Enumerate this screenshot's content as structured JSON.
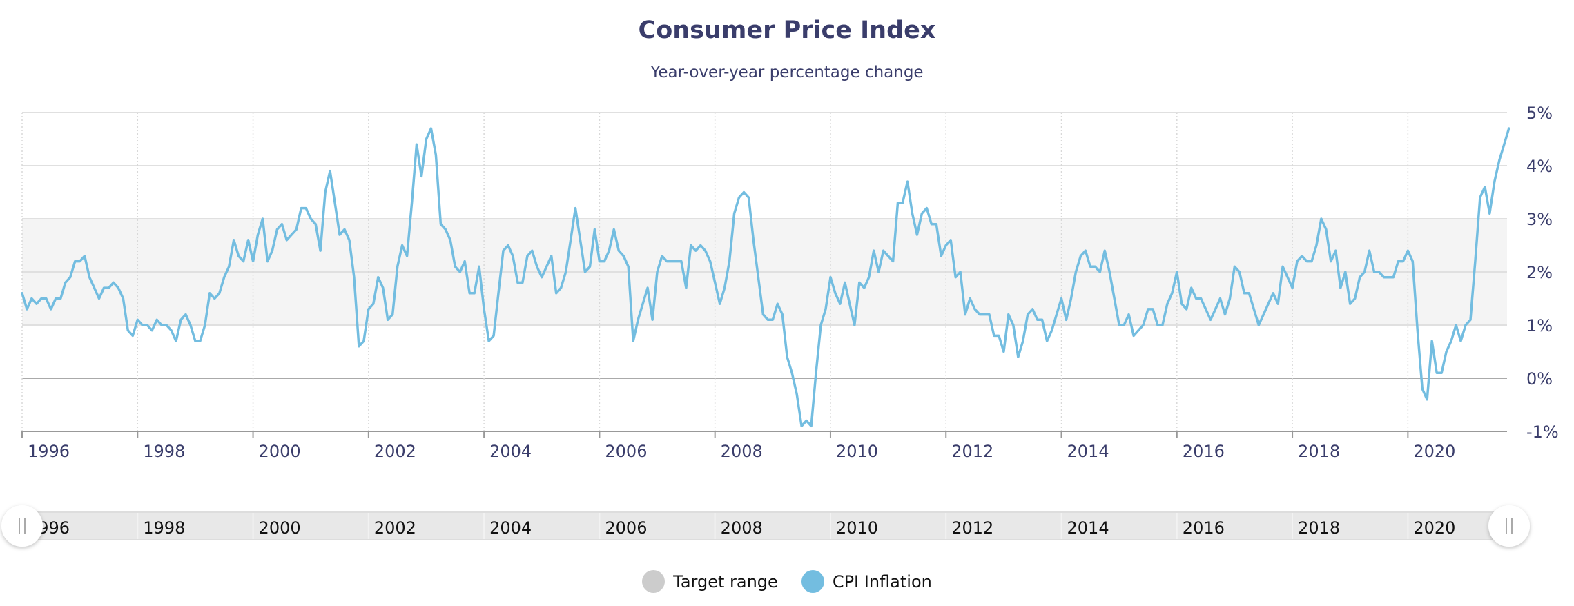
{
  "header": {
    "title": "Consumer Price Index",
    "subtitle": "Year-over-year percentage change"
  },
  "legend": [
    {
      "label": "Target range",
      "color": "#cccccc"
    },
    {
      "label": "CPI Inflation",
      "color": "#73bde0"
    }
  ],
  "colors": {
    "line": "#73bde0",
    "target_band": "#f4f4f4",
    "grid": "#e0e0e0",
    "zero_line": "#aaaaaa",
    "navigator_bg": "#e8e8e8",
    "text": "#3a3d6b"
  },
  "navigator": {
    "labels": [
      "1996",
      "1998",
      "2000",
      "2002",
      "2004",
      "2006",
      "2008",
      "2010",
      "2012",
      "2014",
      "2016",
      "2018",
      "2020"
    ],
    "left_handle": "||",
    "right_handle": "||"
  },
  "chart_data": {
    "type": "line",
    "title": "Consumer Price Index",
    "subtitle": "Year-over-year percentage change",
    "xlabel": "",
    "ylabel": "",
    "x_start": "1996-01",
    "x_end": "2021-10",
    "x_frequency": "monthly",
    "ylim": [
      -1,
      5
    ],
    "y_ticks": [
      "-1%",
      "0%",
      "1%",
      "2%",
      "3%",
      "4%",
      "5%"
    ],
    "x_ticks": [
      "1996",
      "1998",
      "2000",
      "2002",
      "2004",
      "2006",
      "2008",
      "2010",
      "2012",
      "2014",
      "2016",
      "2018",
      "2020"
    ],
    "grid": true,
    "legend_position": "bottom-center",
    "target_range": {
      "name": "Target range",
      "low": 1,
      "high": 3
    },
    "series": [
      {
        "name": "CPI Inflation",
        "values": [
          1.6,
          1.3,
          1.5,
          1.4,
          1.5,
          1.5,
          1.3,
          1.5,
          1.5,
          1.8,
          1.9,
          2.2,
          2.2,
          2.3,
          1.9,
          1.7,
          1.5,
          1.7,
          1.7,
          1.8,
          1.7,
          1.5,
          0.9,
          0.8,
          1.1,
          1.0,
          1.0,
          0.9,
          1.1,
          1.0,
          1.0,
          0.9,
          0.7,
          1.1,
          1.2,
          1.0,
          0.7,
          0.7,
          1.0,
          1.6,
          1.5,
          1.6,
          1.9,
          2.1,
          2.6,
          2.3,
          2.2,
          2.6,
          2.2,
          2.7,
          3.0,
          2.2,
          2.4,
          2.8,
          2.9,
          2.6,
          2.7,
          2.8,
          3.2,
          3.2,
          3.0,
          2.9,
          2.4,
          3.5,
          3.9,
          3.3,
          2.7,
          2.8,
          2.6,
          1.9,
          0.6,
          0.7,
          1.3,
          1.4,
          1.9,
          1.7,
          1.1,
          1.2,
          2.1,
          2.5,
          2.3,
          3.3,
          4.4,
          3.8,
          4.5,
          4.7,
          4.2,
          2.9,
          2.8,
          2.6,
          2.1,
          2.0,
          2.2,
          1.6,
          1.6,
          2.1,
          1.3,
          0.7,
          0.8,
          1.6,
          2.4,
          2.5,
          2.3,
          1.8,
          1.8,
          2.3,
          2.4,
          2.1,
          1.9,
          2.1,
          2.3,
          1.6,
          1.7,
          2.0,
          2.6,
          3.2,
          2.6,
          2.0,
          2.1,
          2.8,
          2.2,
          2.2,
          2.4,
          2.8,
          2.4,
          2.3,
          2.1,
          0.7,
          1.1,
          1.4,
          1.7,
          1.1,
          2.0,
          2.3,
          2.2,
          2.2,
          2.2,
          2.2,
          1.7,
          2.5,
          2.4,
          2.5,
          2.4,
          2.2,
          1.8,
          1.4,
          1.7,
          2.2,
          3.1,
          3.4,
          3.5,
          3.4,
          2.6,
          1.9,
          1.2,
          1.1,
          1.1,
          1.4,
          1.2,
          0.4,
          0.1,
          -0.3,
          -0.9,
          -0.8,
          -0.9,
          0.1,
          1.0,
          1.3,
          1.9,
          1.6,
          1.4,
          1.8,
          1.4,
          1.0,
          1.8,
          1.7,
          1.9,
          2.4,
          2.0,
          2.4,
          2.3,
          2.2,
          3.3,
          3.3,
          3.7,
          3.1,
          2.7,
          3.1,
          3.2,
          2.9,
          2.9,
          2.3,
          2.5,
          2.6,
          1.9,
          2.0,
          1.2,
          1.5,
          1.3,
          1.2,
          1.2,
          1.2,
          0.8,
          0.8,
          0.5,
          1.2,
          1.0,
          0.4,
          0.7,
          1.2,
          1.3,
          1.1,
          1.1,
          0.7,
          0.9,
          1.2,
          1.5,
          1.1,
          1.5,
          2.0,
          2.3,
          2.4,
          2.1,
          2.1,
          2.0,
          2.4,
          2.0,
          1.5,
          1.0,
          1.0,
          1.2,
          0.8,
          0.9,
          1.0,
          1.3,
          1.3,
          1.0,
          1.0,
          1.4,
          1.6,
          2.0,
          1.4,
          1.3,
          1.7,
          1.5,
          1.5,
          1.3,
          1.1,
          1.3,
          1.5,
          1.2,
          1.5,
          2.1,
          2.0,
          1.6,
          1.6,
          1.3,
          1.0,
          1.2,
          1.4,
          1.6,
          1.4,
          2.1,
          1.9,
          1.7,
          2.2,
          2.3,
          2.2,
          2.2,
          2.5,
          3.0,
          2.8,
          2.2,
          2.4,
          1.7,
          2.0,
          1.4,
          1.5,
          1.9,
          2.0,
          2.4,
          2.0,
          2.0,
          1.9,
          1.9,
          1.9,
          2.2,
          2.2,
          2.4,
          2.2,
          0.9,
          -0.2,
          -0.4,
          0.7,
          0.1,
          0.1,
          0.5,
          0.7,
          1.0,
          0.7,
          1.0,
          1.1,
          2.2,
          3.4,
          3.6,
          3.1,
          3.7,
          4.1,
          4.4,
          4.7
        ]
      }
    ]
  }
}
